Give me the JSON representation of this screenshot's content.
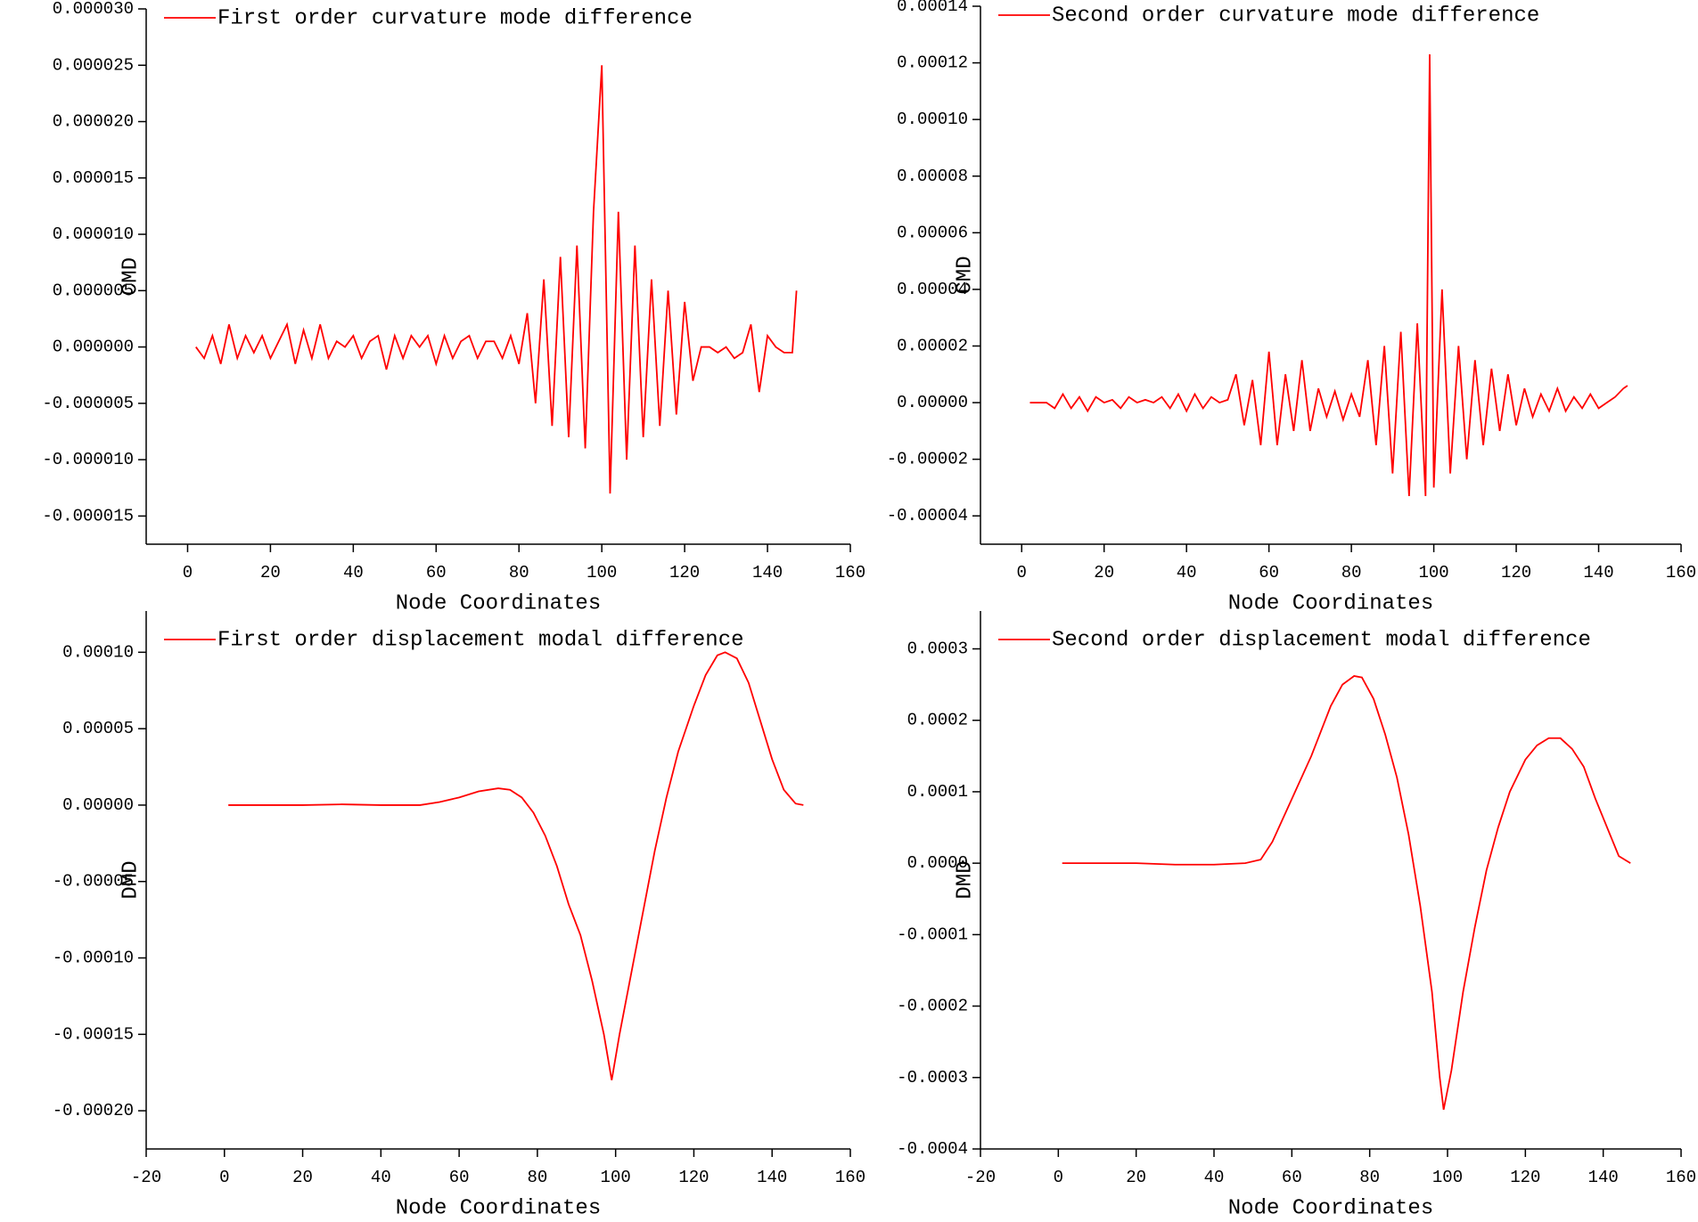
{
  "chart_data": [
    {
      "type": "line",
      "x_label": "Node Coordinates",
      "y_label": "CMD",
      "xlim": [
        -10,
        160
      ],
      "xticks": [
        0,
        20,
        40,
        60,
        80,
        100,
        120,
        140,
        160
      ],
      "ylim": [
        -1.75e-05,
        3e-05
      ],
      "yticks": [
        {
          "value": 3e-05,
          "label": "0.000030"
        },
        {
          "value": 2.5e-05,
          "label": "0.000025"
        },
        {
          "value": 2e-05,
          "label": "0.000020"
        },
        {
          "value": 1.5e-05,
          "label": "0.000015"
        },
        {
          "value": 1e-05,
          "label": "0.000010"
        },
        {
          "value": 5e-06,
          "label": "0.000005"
        },
        {
          "value": 0,
          "label": "0.000000"
        },
        {
          "value": -5e-06,
          "label": "-0.000005"
        },
        {
          "value": -1e-05,
          "label": "-0.000010"
        },
        {
          "value": -1.5e-05,
          "label": "-0.000015"
        }
      ],
      "legend": "upper left",
      "series": [
        {
          "name": "First order curvature mode difference",
          "color": "#ff0000",
          "x": [
            2,
            4,
            6,
            8,
            10,
            12,
            14,
            16,
            18,
            20,
            22,
            24,
            26,
            28,
            30,
            32,
            34,
            36,
            38,
            40,
            42,
            44,
            46,
            48,
            50,
            52,
            54,
            56,
            58,
            60,
            62,
            64,
            66,
            68,
            70,
            72,
            74,
            76,
            78,
            80,
            82,
            84,
            86,
            88,
            90,
            92,
            94,
            96,
            98,
            100,
            102,
            104,
            106,
            108,
            110,
            112,
            114,
            116,
            118,
            120,
            122,
            124,
            126,
            128,
            130,
            132,
            134,
            136,
            138,
            140,
            142,
            144,
            146,
            147
          ],
          "values": [
            0,
            -1e-06,
            1e-06,
            -1.5e-06,
            2e-06,
            -1e-06,
            1e-06,
            -5e-07,
            1e-06,
            -1e-06,
            5e-07,
            2e-06,
            -1.5e-06,
            1.5e-06,
            -1e-06,
            2e-06,
            -1e-06,
            5e-07,
            0,
            1e-06,
            -1e-06,
            5e-07,
            1e-06,
            -2e-06,
            1e-06,
            -1e-06,
            1e-06,
            0,
            1e-06,
            -1.5e-06,
            1e-06,
            -1e-06,
            5e-07,
            1e-06,
            -1e-06,
            5e-07,
            5e-07,
            -1e-06,
            1e-06,
            -1.5e-06,
            3e-06,
            -5e-06,
            6e-06,
            -7e-06,
            8e-06,
            -8e-06,
            9e-06,
            -9e-06,
            1.2e-05,
            2.5e-05,
            -1.3e-05,
            1.2e-05,
            -1e-05,
            9e-06,
            -8e-06,
            6e-06,
            -7e-06,
            5e-06,
            -6e-06,
            4e-06,
            -3e-06,
            0,
            0,
            -5e-07,
            0,
            -1e-06,
            -5e-07,
            2e-06,
            -4e-06,
            1e-06,
            0,
            -5e-07,
            -5e-07,
            5e-06
          ]
        }
      ]
    },
    {
      "type": "line",
      "x_label": "Node Coordinates",
      "y_label": "CMD",
      "xlim": [
        -10,
        160
      ],
      "xticks": [
        0,
        20,
        40,
        60,
        80,
        100,
        120,
        140,
        160
      ],
      "ylim": [
        -5e-05,
        0.00014
      ],
      "yticks": [
        {
          "value": 0.00014,
          "label": "0.00014"
        },
        {
          "value": 0.00012,
          "label": "0.00012"
        },
        {
          "value": 0.0001,
          "label": "0.00010"
        },
        {
          "value": 8e-05,
          "label": "0.00008"
        },
        {
          "value": 6e-05,
          "label": "0.00006"
        },
        {
          "value": 4e-05,
          "label": "0.00004"
        },
        {
          "value": 2e-05,
          "label": "0.00002"
        },
        {
          "value": 0,
          "label": "0.00000"
        },
        {
          "value": -2e-05,
          "label": "-0.00002"
        },
        {
          "value": -4e-05,
          "label": "-0.00004"
        }
      ],
      "legend": "upper left",
      "series": [
        {
          "name": "Second order curvature mode difference",
          "color": "#ff0000",
          "x": [
            2,
            4,
            6,
            8,
            10,
            12,
            14,
            16,
            18,
            20,
            22,
            24,
            26,
            28,
            30,
            32,
            34,
            36,
            38,
            40,
            42,
            44,
            46,
            48,
            50,
            52,
            54,
            56,
            58,
            60,
            62,
            64,
            66,
            68,
            70,
            72,
            74,
            76,
            78,
            80,
            82,
            84,
            86,
            88,
            90,
            92,
            94,
            96,
            98,
            99,
            100,
            102,
            104,
            106,
            108,
            110,
            112,
            114,
            116,
            118,
            120,
            122,
            124,
            126,
            128,
            130,
            132,
            134,
            136,
            138,
            140,
            142,
            144,
            146,
            147
          ],
          "values": [
            0,
            0,
            0,
            -2e-06,
            3e-06,
            -2e-06,
            2e-06,
            -3e-06,
            2e-06,
            0,
            1e-06,
            -2e-06,
            2e-06,
            0,
            1e-06,
            0,
            2e-06,
            -2e-06,
            3e-06,
            -3e-06,
            3e-06,
            -2e-06,
            2e-06,
            0,
            1e-06,
            1e-05,
            -8e-06,
            8e-06,
            -1.5e-05,
            1.8e-05,
            -1.5e-05,
            1e-05,
            -1e-05,
            1.5e-05,
            -1e-05,
            5e-06,
            -5e-06,
            4e-06,
            -6e-06,
            3e-06,
            -5e-06,
            1.5e-05,
            -1.5e-05,
            2e-05,
            -2.5e-05,
            2.5e-05,
            -3.3e-05,
            2.8e-05,
            -3.3e-05,
            0.000123,
            -3e-05,
            4e-05,
            -2.5e-05,
            2e-05,
            -2e-05,
            1.5e-05,
            -1.5e-05,
            1.2e-05,
            -1e-05,
            1e-05,
            -8e-06,
            5e-06,
            -5e-06,
            3e-06,
            -3e-06,
            5e-06,
            -3e-06,
            2e-06,
            -2e-06,
            3e-06,
            -2e-06,
            0,
            2e-06,
            5e-06,
            6e-06
          ]
        }
      ]
    },
    {
      "type": "line",
      "x_label": "Node Coordinates",
      "y_label": "DMD",
      "xlim": [
        -20,
        160
      ],
      "xticks": [
        -20,
        0,
        20,
        40,
        60,
        80,
        100,
        120,
        140,
        160
      ],
      "ylim": [
        -0.000225,
        0.000127
      ],
      "yticks": [
        {
          "value": 0.0001,
          "label": "0.00010"
        },
        {
          "value": 5e-05,
          "label": "0.00005"
        },
        {
          "value": 0,
          "label": "0.00000"
        },
        {
          "value": -5e-05,
          "label": "-0.00005"
        },
        {
          "value": -0.0001,
          "label": "-0.00010"
        },
        {
          "value": -0.00015,
          "label": "-0.00015"
        },
        {
          "value": -0.0002,
          "label": "-0.00020"
        }
      ],
      "legend": "upper left",
      "series": [
        {
          "name": "First order displacement modal difference",
          "color": "#ff0000",
          "x": [
            1,
            10,
            20,
            30,
            40,
            50,
            55,
            60,
            65,
            70,
            73,
            76,
            79,
            82,
            85,
            88,
            91,
            94,
            97,
            99,
            101,
            104,
            107,
            110,
            113,
            116,
            120,
            123,
            126,
            128,
            131,
            134,
            137,
            140,
            143,
            146,
            148
          ],
          "values": [
            0,
            0,
            0,
            5e-07,
            0,
            0,
            2e-06,
            5e-06,
            9e-06,
            1.1e-05,
            1e-05,
            5e-06,
            -5e-06,
            -2e-05,
            -4e-05,
            -6.5e-05,
            -8.5e-05,
            -0.000115,
            -0.00015,
            -0.00018,
            -0.00015,
            -0.00011,
            -7e-05,
            -3e-05,
            5e-06,
            3.5e-05,
            6.5e-05,
            8.5e-05,
            9.8e-05,
            0.0001,
            9.6e-05,
            8e-05,
            5.5e-05,
            3e-05,
            1e-05,
            1e-06,
            0
          ]
        }
      ]
    },
    {
      "type": "line",
      "x_label": "Node Coordinates",
      "y_label": "DMD",
      "xlim": [
        -20,
        160
      ],
      "xticks": [
        -20,
        0,
        20,
        40,
        60,
        80,
        100,
        120,
        140,
        160
      ],
      "ylim": [
        -0.0004,
        0.000353
      ],
      "yticks": [
        {
          "value": 0.0003,
          "label": "0.0003"
        },
        {
          "value": 0.0002,
          "label": "0.0002"
        },
        {
          "value": 0.0001,
          "label": "0.0001"
        },
        {
          "value": 0,
          "label": "0.0000"
        },
        {
          "value": -0.0001,
          "label": "-0.0001"
        },
        {
          "value": -0.0002,
          "label": "-0.0002"
        },
        {
          "value": -0.0003,
          "label": "-0.0003"
        },
        {
          "value": -0.0004,
          "label": "-0.0004"
        }
      ],
      "legend": "upper left",
      "series": [
        {
          "name": "Second order displacement modal difference",
          "color": "#ff0000",
          "x": [
            1,
            20,
            30,
            40,
            48,
            52,
            55,
            60,
            65,
            70,
            73,
            76,
            78,
            81,
            84,
            87,
            90,
            93,
            96,
            98,
            99,
            101,
            104,
            107,
            110,
            113,
            116,
            120,
            123,
            126,
            129,
            132,
            135,
            138,
            141,
            144,
            147
          ],
          "values": [
            0,
            0,
            -2e-06,
            -2e-06,
            0,
            5e-06,
            3e-05,
            9e-05,
            0.00015,
            0.00022,
            0.00025,
            0.000262,
            0.00026,
            0.00023,
            0.00018,
            0.00012,
            4e-05,
            -6e-05,
            -0.00018,
            -0.0003,
            -0.000345,
            -0.00029,
            -0.00018,
            -9e-05,
            -1e-05,
            5e-05,
            0.0001,
            0.000145,
            0.000165,
            0.000175,
            0.000175,
            0.00016,
            0.000135,
            9e-05,
            5e-05,
            1e-05,
            0
          ]
        }
      ]
    }
  ]
}
